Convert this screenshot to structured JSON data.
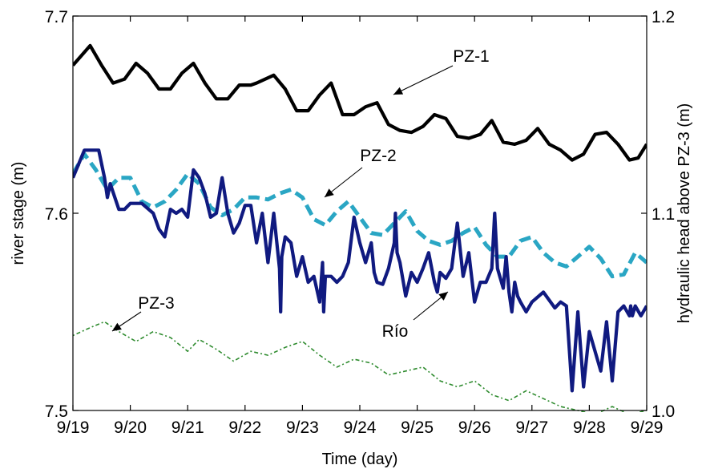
{
  "chart_data": {
    "type": "line",
    "title": "",
    "xlabel": "Time (day)",
    "ylabel_left": "river stage (m)",
    "ylabel_right": "hydraulic head above PZ-3 (m)",
    "x_ticks": [
      "9/19",
      "9/20",
      "9/21",
      "9/22",
      "9/23",
      "9/24",
      "9/25",
      "9/26",
      "9/27",
      "9/28",
      "9/29"
    ],
    "xlim": [
      0,
      10
    ],
    "y_left_ticks": [
      "7.5",
      "7.6",
      "7.7"
    ],
    "ylim_left": [
      7.5,
      7.7
    ],
    "y_right_ticks": [
      "1.0",
      "1.1",
      "1.2"
    ],
    "ylim_right": [
      1.0,
      1.2
    ],
    "grid": false,
    "annotations": [
      {
        "text": "PZ-1",
        "series": "PZ-1"
      },
      {
        "text": "PZ-2",
        "series": "PZ-2"
      },
      {
        "text": "PZ-3",
        "series": "PZ-3"
      },
      {
        "text": "Río",
        "series": "Río"
      }
    ],
    "series": [
      {
        "name": "PZ-1",
        "axis": "right",
        "color": "#000000",
        "style": "solid",
        "x": [
          0,
          0.15,
          0.3,
          0.5,
          0.7,
          0.9,
          1.1,
          1.3,
          1.5,
          1.7,
          1.9,
          2.1,
          2.3,
          2.5,
          2.7,
          2.9,
          3.1,
          3.2,
          3.5,
          3.7,
          3.9,
          4.1,
          4.3,
          4.5,
          4.7,
          4.9,
          5.1,
          5.3,
          5.5,
          5.7,
          5.9,
          6.1,
          6.3,
          6.5,
          6.7,
          6.9,
          7.1,
          7.3,
          7.5,
          7.7,
          7.9,
          8.1,
          8.3,
          8.5,
          8.7,
          8.9,
          9.1,
          9.3,
          9.5,
          9.7,
          9.85,
          10.0
        ],
        "y": [
          1.175,
          1.18,
          1.185,
          1.175,
          1.166,
          1.168,
          1.176,
          1.171,
          1.163,
          1.163,
          1.171,
          1.176,
          1.166,
          1.158,
          1.158,
          1.165,
          1.165,
          1.166,
          1.17,
          1.163,
          1.152,
          1.152,
          1.16,
          1.166,
          1.15,
          1.15,
          1.154,
          1.156,
          1.145,
          1.142,
          1.141,
          1.144,
          1.15,
          1.148,
          1.139,
          1.138,
          1.14,
          1.147,
          1.136,
          1.135,
          1.137,
          1.143,
          1.135,
          1.132,
          1.127,
          1.13,
          1.14,
          1.141,
          1.135,
          1.127,
          1.128,
          1.135
        ]
      },
      {
        "name": "PZ-2",
        "axis": "right",
        "color": "#2aa6c4",
        "style": "dashed",
        "x": [
          0,
          0.2,
          0.4,
          0.6,
          0.8,
          1.0,
          1.2,
          1.4,
          1.6,
          1.8,
          2.0,
          2.2,
          2.4,
          2.6,
          2.8,
          3.0,
          3.2,
          3.4,
          3.6,
          3.8,
          4.0,
          4.2,
          4.4,
          4.6,
          4.8,
          5.0,
          5.2,
          5.4,
          5.6,
          5.8,
          6.0,
          6.2,
          6.4,
          6.6,
          6.8,
          7.0,
          7.2,
          7.4,
          7.6,
          7.8,
          8.0,
          8.2,
          8.4,
          8.6,
          8.8,
          9.0,
          9.2,
          9.4,
          9.6,
          9.8,
          10.0
        ],
        "y": [
          1.12,
          1.13,
          1.122,
          1.112,
          1.118,
          1.118,
          1.106,
          1.103,
          1.106,
          1.112,
          1.12,
          1.115,
          1.103,
          1.099,
          1.102,
          1.108,
          1.108,
          1.107,
          1.11,
          1.112,
          1.108,
          1.097,
          1.094,
          1.101,
          1.106,
          1.098,
          1.09,
          1.089,
          1.095,
          1.101,
          1.091,
          1.086,
          1.084,
          1.086,
          1.09,
          1.093,
          1.084,
          1.078,
          1.078,
          1.086,
          1.088,
          1.08,
          1.075,
          1.073,
          1.078,
          1.083,
          1.077,
          1.068,
          1.069,
          1.08,
          1.075
        ]
      },
      {
        "name": "Río",
        "axis": "left",
        "color": "#101a80",
        "style": "solid",
        "x": [
          0,
          0.1,
          0.2,
          0.3,
          0.45,
          0.55,
          0.6,
          0.65,
          0.8,
          0.9,
          1.0,
          1.2,
          1.4,
          1.5,
          1.6,
          1.7,
          1.8,
          1.9,
          2.0,
          2.1,
          2.2,
          2.3,
          2.4,
          2.5,
          2.6,
          2.7,
          2.8,
          2.9,
          3.0,
          3.1,
          3.2,
          3.3,
          3.4,
          3.5,
          3.6,
          3.62,
          3.64,
          3.7,
          3.8,
          3.9,
          4.0,
          4.1,
          4.2,
          4.3,
          4.35,
          4.37,
          4.4,
          4.5,
          4.6,
          4.7,
          4.8,
          4.9,
          5.0,
          5.1,
          5.2,
          5.25,
          5.3,
          5.4,
          5.5,
          5.6,
          5.62,
          5.65,
          5.7,
          5.8,
          5.9,
          6.0,
          6.1,
          6.2,
          6.3,
          6.35,
          6.4,
          6.5,
          6.6,
          6.7,
          6.8,
          6.9,
          7.0,
          7.1,
          7.2,
          7.3,
          7.35,
          7.4,
          7.5,
          7.55,
          7.6,
          7.65,
          7.7,
          7.75,
          7.8,
          7.9,
          8.0,
          8.2,
          8.4,
          8.5,
          8.6,
          8.7,
          8.8,
          8.9,
          9.0,
          9.2,
          9.3,
          9.4,
          9.5,
          9.6,
          9.7,
          9.72,
          9.75,
          9.8,
          9.9,
          10.0
        ],
        "y": [
          7.618,
          7.625,
          7.632,
          7.632,
          7.632,
          7.618,
          7.608,
          7.615,
          7.602,
          7.602,
          7.605,
          7.605,
          7.6,
          7.592,
          7.588,
          7.602,
          7.6,
          7.602,
          7.598,
          7.622,
          7.618,
          7.61,
          7.598,
          7.6,
          7.618,
          7.6,
          7.59,
          7.595,
          7.604,
          7.604,
          7.585,
          7.6,
          7.575,
          7.6,
          7.572,
          7.55,
          7.578,
          7.588,
          7.585,
          7.568,
          7.578,
          7.565,
          7.568,
          7.555,
          7.575,
          7.55,
          7.568,
          7.568,
          7.565,
          7.568,
          7.575,
          7.598,
          7.585,
          7.575,
          7.585,
          7.57,
          7.565,
          7.564,
          7.572,
          7.585,
          7.6,
          7.58,
          7.575,
          7.558,
          7.57,
          7.565,
          7.572,
          7.58,
          7.565,
          7.56,
          7.57,
          7.567,
          7.572,
          7.595,
          7.568,
          7.58,
          7.555,
          7.565,
          7.565,
          7.572,
          7.6,
          7.572,
          7.562,
          7.578,
          7.56,
          7.55,
          7.565,
          7.558,
          7.555,
          7.55,
          7.555,
          7.56,
          7.552,
          7.555,
          7.553,
          7.51,
          7.55,
          7.512,
          7.54,
          7.52,
          7.545,
          7.515,
          7.55,
          7.553,
          7.548,
          7.553,
          7.548,
          7.553,
          7.548,
          7.553
        ]
      },
      {
        "name": "PZ-3",
        "axis": "right",
        "color": "#2e8b2e",
        "style": "dotted",
        "x": [
          0,
          0.3,
          0.55,
          0.8,
          1.1,
          1.4,
          1.7,
          2.0,
          2.2,
          2.5,
          2.8,
          3.1,
          3.4,
          3.7,
          4.0,
          4.3,
          4.6,
          4.9,
          5.2,
          5.5,
          5.8,
          6.1,
          6.4,
          6.7,
          7.0,
          7.3,
          7.6,
          7.9,
          8.2,
          8.5,
          8.8,
          9.1,
          9.4,
          9.7,
          10.0
        ],
        "y": [
          1.038,
          1.042,
          1.045,
          1.04,
          1.035,
          1.04,
          1.037,
          1.03,
          1.036,
          1.031,
          1.025,
          1.03,
          1.028,
          1.032,
          1.035,
          1.028,
          1.022,
          1.026,
          1.024,
          1.018,
          1.02,
          1.022,
          1.015,
          1.012,
          1.015,
          1.008,
          1.005,
          1.01,
          1.006,
          1.002,
          1.0,
          0.998,
          1.002,
          0.998,
          1.0
        ]
      }
    ]
  }
}
